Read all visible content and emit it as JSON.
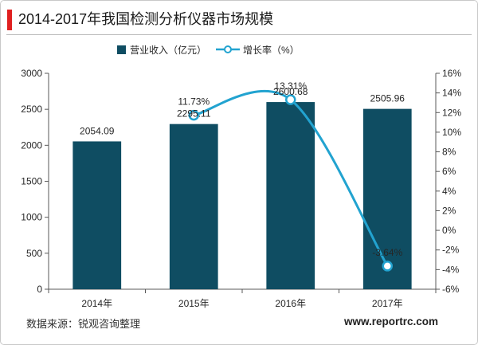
{
  "colors": {
    "accent": "#e02020",
    "bar": "#0f4d62",
    "line": "#22a3d0",
    "axis": "#595959"
  },
  "chart_data": {
    "type": "bar",
    "title": "2014-2017年我国检测分析仪器市场规模",
    "categories": [
      "2014年",
      "2015年",
      "2016年",
      "2017年"
    ],
    "series": [
      {
        "name": "营业收入（亿元）",
        "type": "bar",
        "axis": "left",
        "values": [
          2054.09,
          2295.11,
          2600.68,
          2505.96
        ],
        "labels": [
          "2054.09",
          "2295.11",
          "2600.68",
          "2505.96"
        ]
      },
      {
        "name": "增长率（%）",
        "type": "line",
        "axis": "right",
        "smooth": true,
        "marker": "circle",
        "values": [
          null,
          11.73,
          13.31,
          -3.64
        ],
        "labels": [
          null,
          "11.73%",
          "13.31%",
          "-3.64%"
        ]
      }
    ],
    "y_left": {
      "lim": [
        0,
        3000
      ],
      "ticks": [
        0,
        500,
        1000,
        1500,
        2000,
        2500,
        3000
      ],
      "tick_labels": [
        "0",
        "500",
        "1000",
        "1500",
        "2000",
        "2500",
        "3000"
      ]
    },
    "y_right": {
      "lim": [
        -6,
        16
      ],
      "ticks": [
        -6,
        -4,
        -2,
        0,
        2,
        4,
        6,
        8,
        10,
        12,
        14,
        16
      ],
      "tick_labels": [
        "-6%",
        "-4%",
        "-2%",
        "0%",
        "2%",
        "4%",
        "6%",
        "8%",
        "10%",
        "12%",
        "14%",
        "16%"
      ]
    },
    "xlabel": "",
    "ylabel": "",
    "grid": false,
    "legend_position": "top"
  },
  "footer": {
    "source": "数据来源：锐观咨询整理",
    "website": "www.reportrc.com"
  }
}
